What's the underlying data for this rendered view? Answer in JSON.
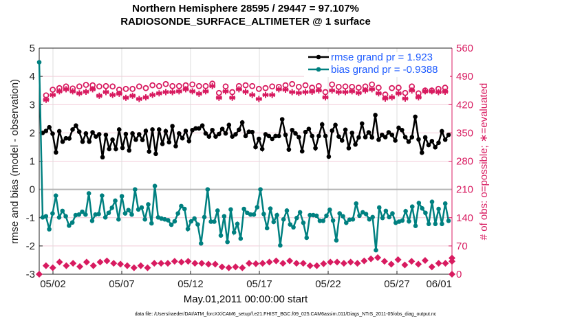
{
  "chart_data": {
    "type": "line",
    "title": [
      "Northern Hemisphere 28595 / 29447 = 97.107%",
      "RADIOSONDE_SURFACE_ALTIMETER @ 1 surface"
    ],
    "xlabel": "May.01,2011 00:00:00 start",
    "ylabel": "rmse and bias (model - observation)",
    "ylabel_right": "# of obs: o=possible; ∗=evaluated",
    "x_unit": "days since 05/01 00:00",
    "xlim": [
      0,
      30
    ],
    "ylim": [
      -3,
      5
    ],
    "ylim_right": [
      0,
      560
    ],
    "x_ticks": [
      {
        "day": 1,
        "label": "05/02"
      },
      {
        "day": 6,
        "label": "05/07"
      },
      {
        "day": 11,
        "label": "05/12"
      },
      {
        "day": 16,
        "label": "05/17"
      },
      {
        "day": 21,
        "label": "05/22"
      },
      {
        "day": 26,
        "label": "05/27"
      },
      {
        "day": 31,
        "label": "06/01"
      }
    ],
    "y_ticks": [
      "-3",
      "-2",
      "-1",
      "0",
      "1",
      "2",
      "3",
      "4",
      "5"
    ],
    "y_ticks_right": [
      "0",
      "70",
      "140",
      "210",
      "280",
      "350",
      "420",
      "490",
      "560"
    ],
    "grid": true,
    "legend_position": "top-right",
    "legend": [
      "rmse grand pr = 1.923",
      "bias grand pr = -0.9388"
    ],
    "colors": {
      "rmse": "#000000",
      "bias": "#008080",
      "counts": "#d81b60",
      "legend_text": "#1f5cff",
      "grid": "#f2cbd8"
    },
    "series": [
      {
        "name": "rmse",
        "axis": "left",
        "x_start": 0.25,
        "x_end": 29.75,
        "values": [
          2.0,
          2.07,
          2.2,
          1.97,
          1.31,
          2.06,
          1.69,
          1.81,
          1.8,
          2.12,
          2.26,
          2.04,
          1.69,
          1.98,
          1.69,
          2.02,
          1.87,
          1.95,
          1.14,
          1.93,
          1.43,
          1.76,
          1.43,
          2.12,
          1.47,
          1.96,
          1.38,
          1.98,
          1.76,
          1.95,
          1.75,
          2.07,
          1.34,
          2.12,
          1.26,
          2.12,
          1.61,
          2.06,
          1.67,
          2.24,
          1.53,
          1.98,
          1.81,
          2.07,
          1.71,
          2.1,
          2.16,
          2.16,
          2.26,
          1.98,
          1.87,
          2.1,
          1.87,
          1.96,
          2.14,
          1.98,
          2.28,
          1.87,
          1.95,
          2.11,
          2.37,
          1.89,
          2.04,
          2.03,
          1.5,
          1.79,
          1.43,
          1.95,
          1.89,
          1.79,
          1.89,
          1.89,
          2.48,
          1.93,
          1.41,
          2.1,
          1.98,
          1.85,
          1.35,
          2.03,
          2.14,
          1.89,
          1.46,
          1.89,
          2.3,
          1.89,
          1.16,
          2.08,
          2.28,
          1.87,
          1.73,
          2.11,
          1.46,
          2.0,
          1.59,
          1.84,
          2.33,
          1.85,
          2.02,
          1.84,
          2.63,
          1.76,
          1.93,
          1.85,
          2.02,
          1.93,
          1.73,
          2.18,
          2.1,
          1.85,
          1.69,
          1.85,
          2.57,
          1.77,
          1.3,
          1.84,
          1.57,
          1.71,
          1.49,
          1.65,
          2.06,
          1.76,
          1.93
        ]
      },
      {
        "name": "bias",
        "axis": "left",
        "first_point": {
          "x": 0,
          "value": 4.5
        },
        "x_start": 0.25,
        "x_end": 29.75,
        "values": [
          -0.99,
          -0.95,
          -1.41,
          -0.85,
          -0.22,
          -0.99,
          -0.76,
          -0.95,
          -1.28,
          -1.17,
          -0.91,
          -0.89,
          -0.79,
          -0.89,
          -0.14,
          -1.11,
          -0.89,
          -0.87,
          -0.22,
          -0.99,
          -0.83,
          -0.65,
          -0.4,
          -1.06,
          -0.24,
          -0.85,
          -0.73,
          -0.89,
          0.0,
          -0.71,
          -0.64,
          -1.06,
          -0.53,
          -1.2,
          0.12,
          -0.99,
          -1.03,
          -1.06,
          -1.09,
          -1.25,
          -1.13,
          -0.85,
          -0.59,
          -0.69,
          -1.4,
          -1.13,
          -1.03,
          -1.24,
          -1.91,
          -0.98,
          0.0,
          -1.14,
          -1.14,
          -0.75,
          -1.63,
          -0.95,
          -1.86,
          -0.71,
          -1.52,
          -1.22,
          -1.74,
          -0.69,
          -0.83,
          -0.89,
          -0.89,
          -0.63,
          0.0,
          -0.87,
          -1.37,
          -0.68,
          -1.15,
          -0.91,
          -1.98,
          -1.06,
          -0.75,
          -1.24,
          -1.34,
          -1.01,
          -0.81,
          -1.18,
          -1.71,
          -0.91,
          -0.91,
          -0.93,
          -1.11,
          -1.11,
          -0.93,
          -0.72,
          -1.1,
          -1.8,
          -0.85,
          -0.95,
          -1.18,
          -1.07,
          -1.06,
          -0.5,
          -0.93,
          -0.81,
          -0.87,
          -1.06,
          -0.98,
          -2.15,
          -0.64,
          -1.01,
          -0.76,
          -0.98,
          -0.85,
          -1.18,
          -1.14,
          -1.1,
          -0.77,
          -1.13,
          -0.61,
          -1.29,
          -0.48,
          -0.67,
          -0.83,
          -1.22,
          -0.44,
          -1.22,
          -0.69,
          -1.22,
          -0.5,
          -1.11
        ]
      },
      {
        "name": "possible",
        "axis": "right",
        "marker": "o",
        "x_start": 0.5,
        "x_end": 29.5,
        "values": [
          443,
          457,
          461,
          465,
          460,
          465,
          469,
          468,
          465,
          466,
          465,
          457,
          459,
          459,
          465,
          461,
          468,
          466,
          471,
          466,
          466,
          468,
          470,
          466,
          466,
          472,
          449,
          465,
          451,
          466,
          468,
          466,
          459,
          461,
          465,
          464,
          468,
          471,
          464,
          468,
          462,
          466,
          451,
          470,
          464,
          465,
          464,
          462,
          465,
          470,
          462,
          445,
          461,
          462,
          449,
          465,
          448,
          455,
          455,
          459,
          462
        ]
      },
      {
        "name": "evaluated",
        "axis": "right",
        "marker": "*",
        "x_start": 0.5,
        "x_end": 29.5,
        "values": [
          432,
          444,
          453,
          458,
          453,
          448,
          452,
          458,
          442,
          451,
          444,
          447,
          437,
          442,
          434,
          438,
          444,
          448,
          451,
          451,
          453,
          458,
          453,
          447,
          453,
          466,
          437,
          453,
          437,
          458,
          452,
          444,
          434,
          444,
          444,
          458,
          457,
          451,
          449,
          451,
          452,
          455,
          438,
          455,
          451,
          451,
          453,
          449,
          455,
          458,
          448,
          435,
          438,
          448,
          435,
          455,
          438,
          453,
          453,
          451,
          452
        ]
      },
      {
        "name": "low-count",
        "axis": "right",
        "marker": "diamond",
        "x_start": 0,
        "x_end": 31,
        "values": [
          0,
          21,
          16,
          30,
          21,
          27,
          19,
          30,
          21,
          30,
          33,
          27,
          25,
          21,
          16,
          21,
          16,
          27,
          27,
          27,
          32,
          30,
          32,
          27,
          27,
          25,
          25,
          18,
          16,
          18,
          16,
          27,
          26,
          27,
          30,
          33,
          27,
          33,
          27,
          27,
          21,
          21,
          26,
          30,
          30,
          27,
          30,
          27,
          33,
          38,
          41,
          32,
          25,
          36,
          23,
          32,
          25,
          34,
          18,
          27,
          27,
          40,
          32,
          0
        ]
      }
    ],
    "data_file": "data file: /Users/raeder/DAI/ATM_forcXX/CAM6_setup/f.e21.FHIST_BGC.f09_025.CAM6assim.011/Diags_NTrS_2011-05/obs_diag_output.nc"
  }
}
